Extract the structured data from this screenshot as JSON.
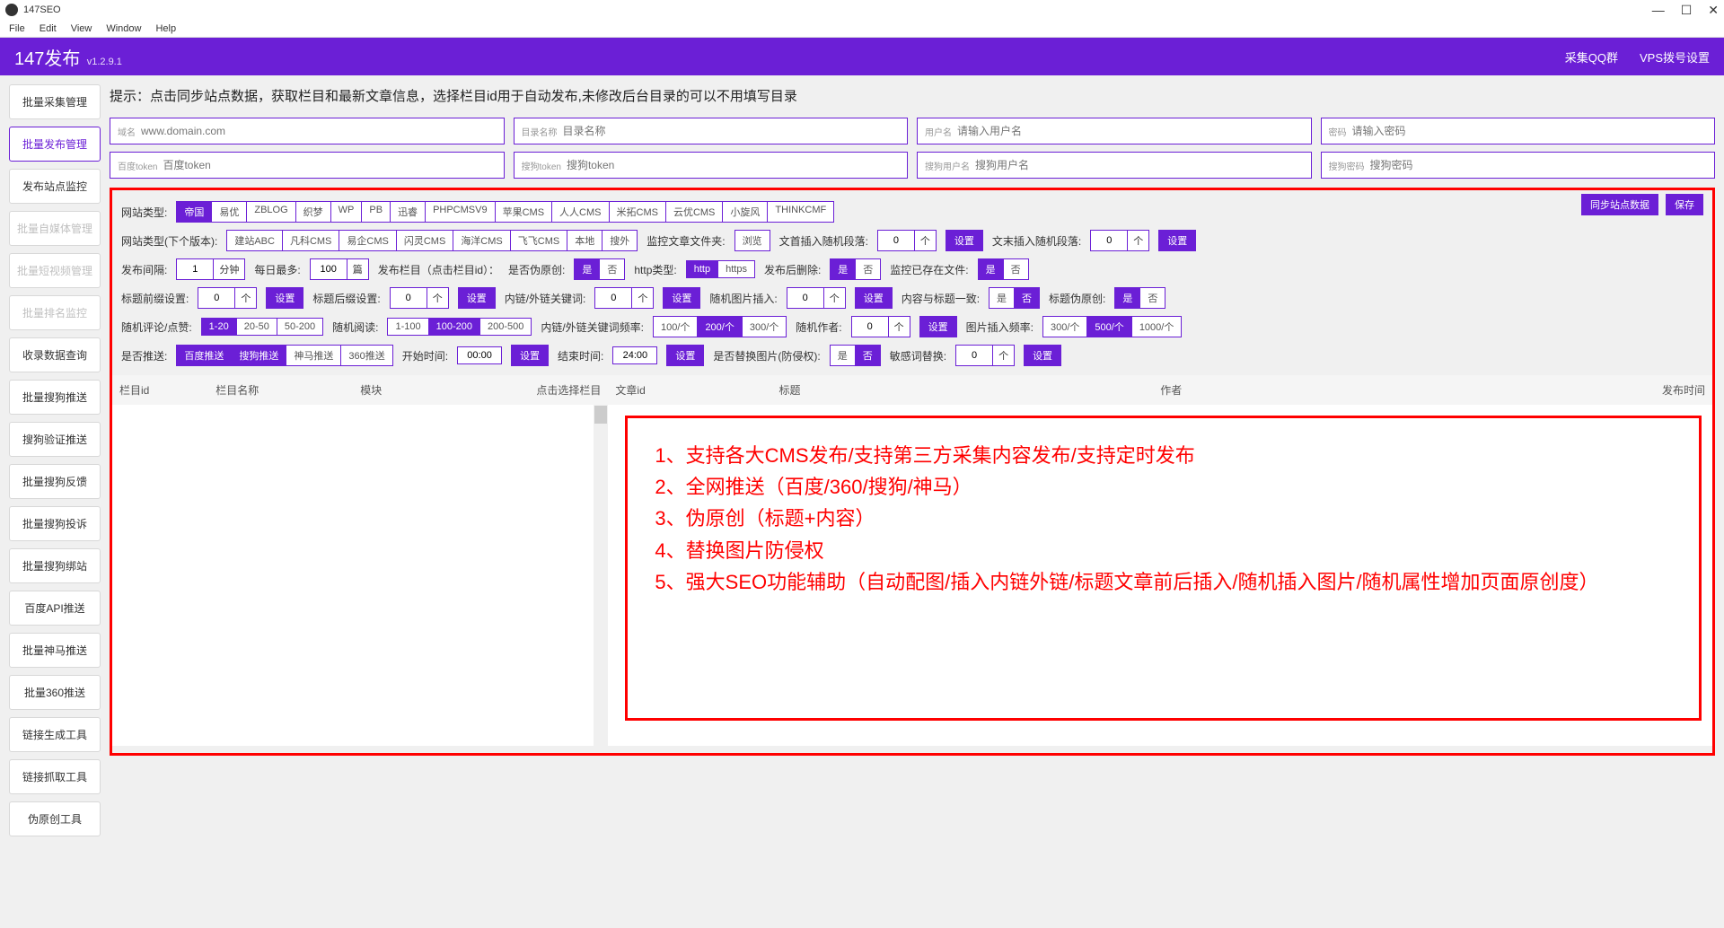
{
  "window": {
    "title": "147SEO"
  },
  "menubar": [
    "File",
    "Edit",
    "View",
    "Window",
    "Help"
  ],
  "topbar": {
    "title": "147发布",
    "version": "v1.2.9.1",
    "right": [
      "采集QQ群",
      "VPS拨号设置"
    ]
  },
  "sidebar": [
    {
      "label": "批量采集管理",
      "state": "normal"
    },
    {
      "label": "批量发布管理",
      "state": "active"
    },
    {
      "label": "发布站点监控",
      "state": "normal"
    },
    {
      "label": "批量自媒体管理",
      "state": "disabled"
    },
    {
      "label": "批量短视频管理",
      "state": "disabled"
    },
    {
      "label": "批量排名监控",
      "state": "disabled"
    },
    {
      "label": "收录数据查询",
      "state": "normal"
    },
    {
      "label": "批量搜狗推送",
      "state": "normal"
    },
    {
      "label": "搜狗验证推送",
      "state": "normal"
    },
    {
      "label": "批量搜狗反馈",
      "state": "normal"
    },
    {
      "label": "批量搜狗投诉",
      "state": "normal"
    },
    {
      "label": "批量搜狗绑站",
      "state": "normal"
    },
    {
      "label": "百度API推送",
      "state": "normal"
    },
    {
      "label": "批量神马推送",
      "state": "normal"
    },
    {
      "label": "批量360推送",
      "state": "normal"
    },
    {
      "label": "链接生成工具",
      "state": "normal"
    },
    {
      "label": "链接抓取工具",
      "state": "normal"
    },
    {
      "label": "伪原创工具",
      "state": "normal"
    }
  ],
  "hint": "提示：点击同步站点数据，获取栏目和最新文章信息，选择栏目id用于自动发布,未修改后台目录的可以不用填写目录",
  "inputs_row1": [
    {
      "label": "域名",
      "placeholder": "www.domain.com"
    },
    {
      "label": "目录名称",
      "placeholder": "目录名称"
    },
    {
      "label": "用户名",
      "placeholder": "请输入用户名"
    },
    {
      "label": "密码",
      "placeholder": "请输入密码"
    }
  ],
  "inputs_row2": [
    {
      "label": "百度token",
      "placeholder": "百度token"
    },
    {
      "label": "搜狗token",
      "placeholder": "搜狗token"
    },
    {
      "label": "搜狗用户名",
      "placeholder": "搜狗用户名"
    },
    {
      "label": "搜狗密码",
      "placeholder": "搜狗密码"
    }
  ],
  "top_buttons": [
    "同步站点数据",
    "保存"
  ],
  "row_site_type": {
    "label": "网站类型:",
    "options": [
      "帝国",
      "易优",
      "ZBLOG",
      "织梦",
      "WP",
      "PB",
      "迅睿",
      "PHPCMSV9",
      "苹果CMS",
      "人人CMS",
      "米拓CMS",
      "云优CMS",
      "小旋风",
      "THINKCMF"
    ],
    "selected": 0
  },
  "row_next_ver": {
    "label": "网站类型(下个版本):",
    "options": [
      "建站ABC",
      "凡科CMS",
      "易企CMS",
      "闪灵CMS",
      "海洋CMS",
      "飞飞CMS",
      "本地",
      "搜外"
    ],
    "monitor_label": "监控文章文件夹:",
    "browse": "浏览",
    "insert_start_label": "文首插入随机段落:",
    "insert_start_val": "0",
    "insert_start_unit": "个",
    "insert_end_label": "文末插入随机段落:",
    "insert_end_val": "0",
    "insert_end_unit": "个",
    "set": "设置"
  },
  "row_interval": {
    "interval_label": "发布间隔:",
    "interval_val": "1",
    "interval_unit": "分钟",
    "daily_label": "每日最多:",
    "daily_val": "100",
    "daily_unit": "篇",
    "col_label": "发布栏目（点击栏目id）：",
    "pseudo_label": "是否伪原创:",
    "yes": "是",
    "no": "否",
    "http_label": "http类型:",
    "http": "http",
    "https": "https",
    "del_label": "发布后删除:",
    "monitor_exist_label": "监控已存在文件:"
  },
  "row_prefix": {
    "prefix_label": "标题前缀设置:",
    "prefix_val": "0",
    "unit": "个",
    "suffix_label": "标题后缀设置:",
    "suffix_val": "0",
    "keyword_label": "内链/外链关键词:",
    "keyword_val": "0",
    "img_label": "随机图片插入:",
    "img_val": "0",
    "consist_label": "内容与标题一致:",
    "yes": "是",
    "no": "否",
    "title_pseudo_label": "标题伪原创:",
    "set": "设置"
  },
  "row_comment": {
    "comment_label": "随机评论/点赞:",
    "comment_opts": [
      "1-20",
      "20-50",
      "50-200"
    ],
    "comment_sel": 0,
    "read_label": "随机阅读:",
    "read_opts": [
      "1-100",
      "100-200",
      "200-500"
    ],
    "read_sel": 1,
    "kwfreq_label": "内链/外链关键词频率:",
    "kwfreq_opts": [
      "100/个",
      "200/个",
      "300/个"
    ],
    "kwfreq_sel": 1,
    "author_label": "随机作者:",
    "author_val": "0",
    "author_unit": "个",
    "imgfreq_label": "图片插入频率:",
    "imgfreq_opts": [
      "300/个",
      "500/个",
      "1000/个"
    ],
    "imgfreq_sel": 1,
    "set": "设置"
  },
  "row_push": {
    "push_label": "是否推送:",
    "push_opts": [
      "百度推送",
      "搜狗推送",
      "神马推送",
      "360推送"
    ],
    "start_label": "开始时间:",
    "start_val": "00:00",
    "end_label": "结束时间:",
    "end_val": "24:00",
    "replace_img_label": "是否替换图片(防侵权):",
    "yes": "是",
    "no": "否",
    "sensitive_label": "敏感词替换:",
    "sensitive_val": "0",
    "sensitive_unit": "个",
    "set": "设置"
  },
  "table_left_headers": [
    "栏目id",
    "栏目名称",
    "模块",
    "点击选择栏目"
  ],
  "table_right_headers": [
    "文章id",
    "标题",
    "作者",
    "发布时间"
  ],
  "features": [
    "1、支持各大CMS发布/支持第三方采集内容发布/支持定时发布",
    "2、全网推送（百度/360/搜狗/神马）",
    "3、伪原创（标题+内容）",
    "4、替换图片防侵权",
    "5、强大SEO功能辅助（自动配图/插入内链外链/标题文章前后插入/随机插入图片/随机属性增加页面原创度）"
  ],
  "colors": {
    "purple": "#6b1fd6",
    "red": "#ff0000"
  }
}
